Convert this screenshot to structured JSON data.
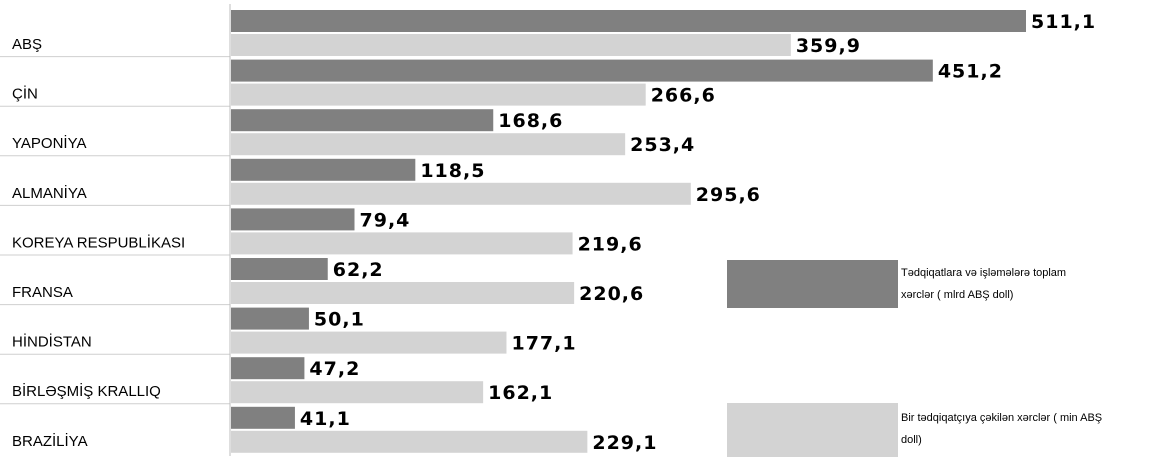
{
  "chart_data": {
    "type": "bar",
    "orientation": "horizontal",
    "categories": [
      "ABŞ",
      "ÇİN",
      "YAPONİYA",
      "ALMANİYA",
      "KOREYA RESPUBLİKASI",
      "FRANSA",
      "HİNDİSTAN",
      "BİRLƏŞMİŞ KRALLIQ",
      "BRAZİLİYA"
    ],
    "series": [
      {
        "name": "Tədqiqatlara və işləmələrə toplam xərclər ( mlrd ABŞ doll)",
        "color": "#808080",
        "values": [
          511.1,
          451.2,
          168.6,
          118.5,
          79.4,
          62.2,
          50.1,
          47.2,
          41.1
        ],
        "labels": [
          "511,1",
          "451,2",
          "168,6",
          "118,5",
          "79,4",
          "62,2",
          "50,1",
          "47,2",
          "41,1"
        ]
      },
      {
        "name": "Bir tədqiqatçıya çəkilən xərclər ( min ABŞ doll)",
        "color": "#d3d3d3",
        "values": [
          359.9,
          266.6,
          253.4,
          295.6,
          219.6,
          220.6,
          177.1,
          162.1,
          229.1
        ],
        "labels": [
          "359,9",
          "266,6",
          "253,4",
          "295,6",
          "219,6",
          "220,6",
          "177,1",
          "162,1",
          "229,1"
        ]
      }
    ],
    "legend_lines": [
      [
        "Tədqiqatlara  və  işləmələrə  toplam",
        "xərclər ( mlrd ABŞ  doll)"
      ],
      [
        "Bir tədqiqatçıya çəkilən xərclər ( min ABŞ",
        "doll)"
      ]
    ],
    "legend_position": "right",
    "xlim": [
      0,
      520
    ],
    "grid": false
  }
}
